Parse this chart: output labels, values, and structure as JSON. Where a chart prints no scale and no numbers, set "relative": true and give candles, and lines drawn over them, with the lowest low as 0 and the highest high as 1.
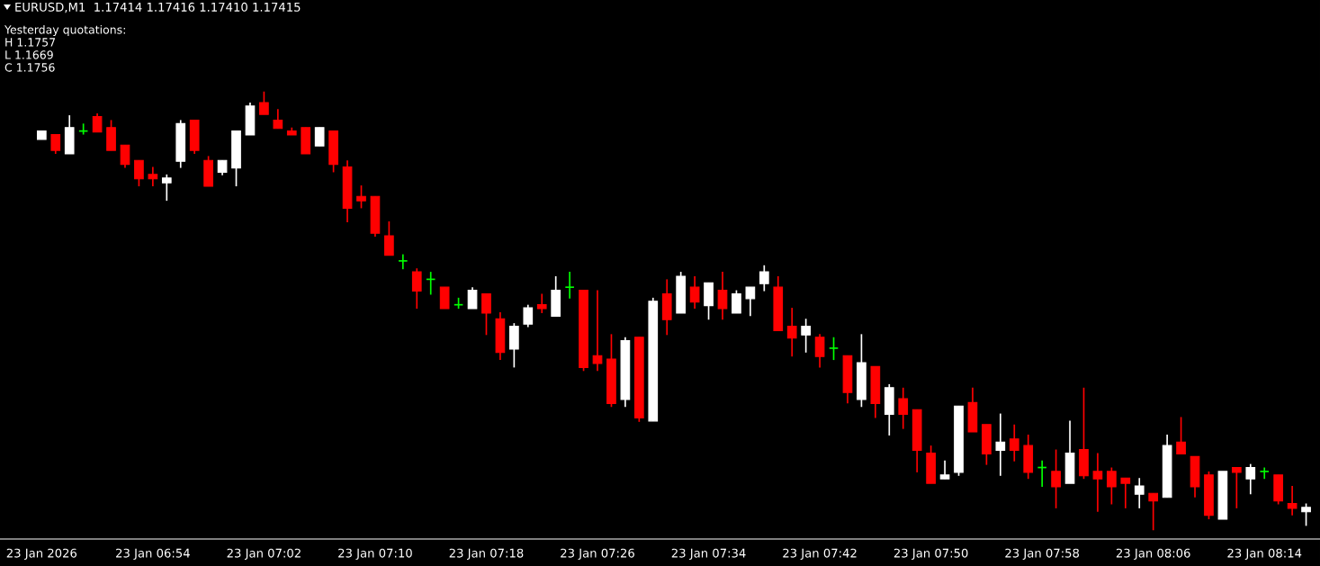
{
  "chart_data": {
    "type": "candlestick",
    "relative": true,
    "title": "EURUSD,M1  1.17414 1.17416 1.17410 1.17415",
    "annotations": [
      "Yesterday quotations:",
      "H 1.1757",
      "L 1.1669",
      "C 1.1756"
    ],
    "categories": [
      "23 Jan 2026",
      null,
      null,
      null,
      null,
      null,
      null,
      null,
      "23 Jan 06:54",
      null,
      null,
      null,
      null,
      null,
      null,
      null,
      "23 Jan 07:02",
      null,
      null,
      null,
      null,
      null,
      null,
      null,
      "23 Jan 07:10",
      null,
      null,
      null,
      null,
      null,
      null,
      null,
      "23 Jan 07:18",
      null,
      null,
      null,
      null,
      null,
      null,
      null,
      "23 Jan 07:26",
      null,
      null,
      null,
      null,
      null,
      null,
      null,
      "23 Jan 07:34",
      null,
      null,
      null,
      null,
      null,
      null,
      null,
      "23 Jan 07:42",
      null,
      null,
      null,
      null,
      null,
      null,
      null,
      "23 Jan 07:50",
      null,
      null,
      null,
      null,
      null,
      null,
      null,
      "23 Jan 07:58",
      null,
      null,
      null,
      null,
      null,
      null,
      null,
      "23 Jan 08:06",
      null,
      null,
      null,
      null,
      null,
      null,
      null,
      "23 Jan 08:14",
      null,
      null,
      null
    ],
    "ohlc": [
      [
        0.891,
        0.91,
        0.891,
        0.91
      ],
      [
        0.902,
        0.902,
        0.858,
        0.866
      ],
      [
        0.858,
        0.946,
        0.858,
        0.918
      ],
      [
        0.91,
        0.927,
        0.902,
        0.91
      ],
      [
        0.943,
        0.95,
        0.908,
        0.908
      ],
      [
        0.918,
        0.935,
        0.866,
        0.866
      ],
      [
        0.878,
        0.878,
        0.826,
        0.834
      ],
      [
        0.843,
        0.843,
        0.784,
        0.801
      ],
      [
        0.811,
        0.828,
        0.784,
        0.801
      ],
      [
        0.792,
        0.811,
        0.751,
        0.803
      ],
      [
        0.841,
        0.935,
        0.826,
        0.927
      ],
      [
        0.935,
        0.935,
        0.858,
        0.866
      ],
      [
        0.843,
        0.853,
        0.784,
        0.784
      ],
      [
        0.816,
        0.843,
        0.809,
        0.843
      ],
      [
        0.826,
        0.91,
        0.784,
        0.91
      ],
      [
        0.901,
        0.975,
        0.901,
        0.967
      ],
      [
        0.975,
        1.0,
        0.948,
        0.948
      ],
      [
        0.935,
        0.96,
        0.916,
        0.916
      ],
      [
        0.91,
        0.918,
        0.901,
        0.901
      ],
      [
        0.918,
        0.918,
        0.858,
        0.858
      ],
      [
        0.876,
        0.918,
        0.876,
        0.918
      ],
      [
        0.91,
        0.91,
        0.816,
        0.834
      ],
      [
        0.828,
        0.843,
        0.702,
        0.734
      ],
      [
        0.761,
        0.786,
        0.734,
        0.751
      ],
      [
        0.761,
        0.761,
        0.669,
        0.677
      ],
      [
        0.671,
        0.704,
        0.627,
        0.627
      ],
      [
        0.614,
        0.629,
        0.595,
        0.614
      ],
      [
        0.589,
        0.597,
        0.505,
        0.545
      ],
      [
        0.572,
        0.589,
        0.537,
        0.572
      ],
      [
        0.554,
        0.554,
        0.505,
        0.505
      ],
      [
        0.514,
        0.53,
        0.505,
        0.514
      ],
      [
        0.505,
        0.554,
        0.505,
        0.547
      ],
      [
        0.539,
        0.539,
        0.445,
        0.495
      ],
      [
        0.482,
        0.497,
        0.388,
        0.405
      ],
      [
        0.413,
        0.472,
        0.371,
        0.465
      ],
      [
        0.47,
        0.514,
        0.463,
        0.507
      ],
      [
        0.514,
        0.539,
        0.495,
        0.505
      ],
      [
        0.488,
        0.579,
        0.488,
        0.547
      ],
      [
        0.554,
        0.589,
        0.528,
        0.554
      ],
      [
        0.547,
        0.547,
        0.363,
        0.371
      ],
      [
        0.398,
        0.547,
        0.363,
        0.38
      ],
      [
        0.39,
        0.447,
        0.281,
        0.289
      ],
      [
        0.298,
        0.44,
        0.281,
        0.432
      ],
      [
        0.44,
        0.44,
        0.247,
        0.256
      ],
      [
        0.249,
        0.53,
        0.249,
        0.522
      ],
      [
        0.539,
        0.572,
        0.445,
        0.48
      ],
      [
        0.495,
        0.589,
        0.495,
        0.579
      ],
      [
        0.554,
        0.579,
        0.505,
        0.52
      ],
      [
        0.512,
        0.564,
        0.48,
        0.564
      ],
      [
        0.547,
        0.589,
        0.48,
        0.505
      ],
      [
        0.495,
        0.547,
        0.495,
        0.539
      ],
      [
        0.528,
        0.554,
        0.488,
        0.554
      ],
      [
        0.562,
        0.604,
        0.545,
        0.589
      ],
      [
        0.554,
        0.579,
        0.455,
        0.455
      ],
      [
        0.465,
        0.507,
        0.396,
        0.438
      ],
      [
        0.445,
        0.482,
        0.405,
        0.465
      ],
      [
        0.44,
        0.447,
        0.371,
        0.396
      ],
      [
        0.415,
        0.44,
        0.388,
        0.415
      ],
      [
        0.398,
        0.398,
        0.289,
        0.314
      ],
      [
        0.298,
        0.447,
        0.281,
        0.382
      ],
      [
        0.373,
        0.373,
        0.256,
        0.289
      ],
      [
        0.264,
        0.333,
        0.216,
        0.325
      ],
      [
        0.3,
        0.325,
        0.231,
        0.264
      ],
      [
        0.275,
        0.275,
        0.132,
        0.182
      ],
      [
        0.176,
        0.193,
        0.107,
        0.107
      ],
      [
        0.117,
        0.159,
        0.117,
        0.126
      ],
      [
        0.132,
        0.283,
        0.124,
        0.283
      ],
      [
        0.291,
        0.325,
        0.224,
        0.224
      ],
      [
        0.241,
        0.241,
        0.149,
        0.174
      ],
      [
        0.182,
        0.266,
        0.124,
        0.201
      ],
      [
        0.208,
        0.241,
        0.157,
        0.182
      ],
      [
        0.193,
        0.218,
        0.117,
        0.132
      ],
      [
        0.143,
        0.159,
        0.099,
        0.143
      ],
      [
        0.134,
        0.184,
        0.05,
        0.099
      ],
      [
        0.107,
        0.25,
        0.107,
        0.176
      ],
      [
        0.184,
        0.325,
        0.117,
        0.124
      ],
      [
        0.134,
        0.176,
        0.042,
        0.117
      ],
      [
        0.134,
        0.143,
        0.059,
        0.099
      ],
      [
        0.119,
        0.119,
        0.05,
        0.107
      ],
      [
        0.082,
        0.119,
        0.05,
        0.101
      ],
      [
        0.084,
        0.084,
        0.0,
        0.067
      ],
      [
        0.075,
        0.218,
        0.075,
        0.193
      ],
      [
        0.201,
        0.258,
        0.174,
        0.174
      ],
      [
        0.168,
        0.168,
        0.075,
        0.099
      ],
      [
        0.126,
        0.134,
        0.025,
        0.034
      ],
      [
        0.025,
        0.134,
        0.025,
        0.134
      ],
      [
        0.143,
        0.143,
        0.05,
        0.132
      ],
      [
        0.117,
        0.151,
        0.082,
        0.143
      ],
      [
        0.134,
        0.143,
        0.117,
        0.134
      ],
      [
        0.126,
        0.126,
        0.059,
        0.067
      ],
      [
        0.061,
        0.101,
        0.034,
        0.05
      ],
      [
        0.042,
        0.061,
        0.01,
        0.052
      ]
    ],
    "colors": [
      "#ffffff",
      "#ff0000",
      "#ffffff",
      "#00ff00",
      "#ff0000",
      "#ff0000",
      "#ff0000",
      "#ff0000",
      "#ff0000",
      "#ffffff",
      "#ffffff",
      "#ff0000",
      "#ff0000",
      "#ffffff",
      "#ffffff",
      "#ffffff",
      "#ff0000",
      "#ff0000",
      "#ff0000",
      "#ff0000",
      "#ffffff",
      "#ff0000",
      "#ff0000",
      "#ff0000",
      "#ff0000",
      "#ff0000",
      "#00ff00",
      "#ff0000",
      "#00ff00",
      "#ff0000",
      "#00ff00",
      "#ffffff",
      "#ff0000",
      "#ff0000",
      "#ffffff",
      "#ffffff",
      "#ff0000",
      "#ffffff",
      "#00ff00",
      "#ff0000",
      "#ff0000",
      "#ff0000",
      "#ffffff",
      "#ff0000",
      "#ffffff",
      "#ff0000",
      "#ffffff",
      "#ff0000",
      "#ffffff",
      "#ff0000",
      "#ffffff",
      "#ffffff",
      "#ffffff",
      "#ff0000",
      "#ff0000",
      "#ffffff",
      "#ff0000",
      "#00ff00",
      "#ff0000",
      "#ffffff",
      "#ff0000",
      "#ffffff",
      "#ff0000",
      "#ff0000",
      "#ff0000",
      "#ffffff",
      "#ffffff",
      "#ff0000",
      "#ff0000",
      "#ffffff",
      "#ff0000",
      "#ff0000",
      "#00ff00",
      "#ff0000",
      "#ffffff",
      "#ff0000",
      "#ff0000",
      "#ff0000",
      "#ff0000",
      "#ffffff",
      "#ff0000",
      "#ffffff",
      "#ff0000",
      "#ff0000",
      "#ff0000",
      "#ffffff",
      "#ff0000",
      "#ffffff",
      "#00ff00",
      "#ff0000",
      "#ff0000",
      "#ffffff"
    ],
    "grid": false,
    "legend": false
  }
}
